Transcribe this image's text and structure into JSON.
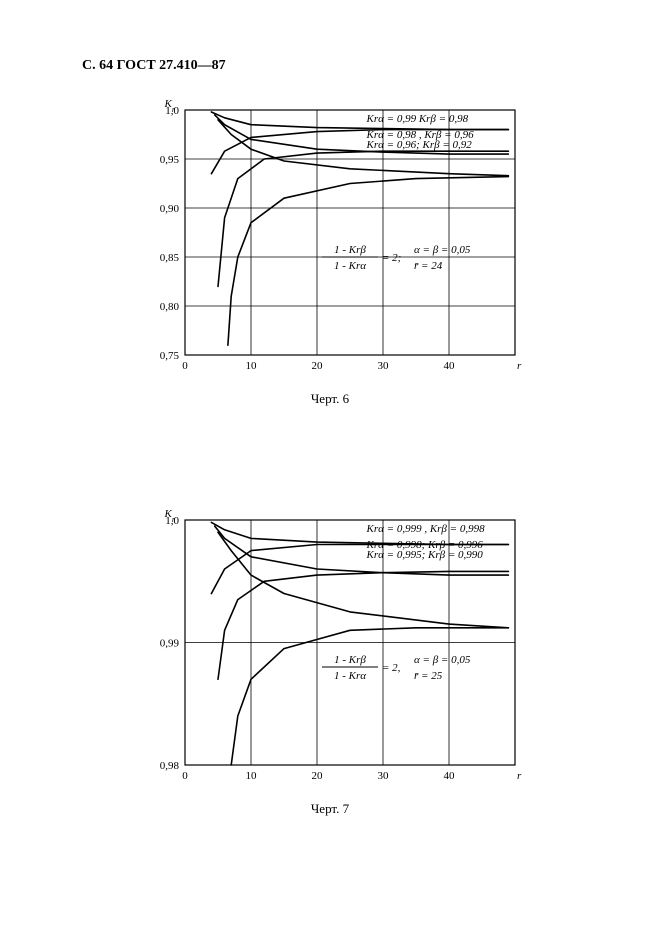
{
  "header": "С. 64 ГОСТ 27.410—87",
  "chart6": {
    "caption": "Черт. 6",
    "y_axis_label": "K",
    "y_axis_sub": "r",
    "x_axis_label": "r",
    "y_ticks": [
      "1,0",
      "0,95",
      "0,90",
      "0,85",
      "0,80",
      "0,75"
    ],
    "x_ticks": [
      "0",
      "10",
      "20",
      "30",
      "40"
    ],
    "curve_labels": [
      "Krα = 0,99    Krβ = 0,98",
      "Krα = 0,98 ,  Krβ = 0,96",
      "Krα = 0,96;  Krβ = 0,92"
    ],
    "formula_lhs": "1 - Krβ",
    "formula_den": "1 - Krα",
    "formula_rhs": "= 2;",
    "formula_right1": "α = β = 0,05",
    "formula_right2": "r̄ = 24",
    "ylim": [
      0.75,
      1.0
    ],
    "xlim": [
      0,
      50
    ],
    "plot": {
      "bg": "#ffffff",
      "stroke": "#000000",
      "linewidth_frame": 1.2,
      "linewidth_grid": 0.8,
      "linewidth_curve": 1.6
    },
    "series": [
      {
        "name": "top-desc-1",
        "pts": [
          [
            4,
            0.998
          ],
          [
            6,
            0.992
          ],
          [
            10,
            0.985
          ],
          [
            20,
            0.982
          ],
          [
            30,
            0.981
          ],
          [
            40,
            0.98
          ],
          [
            49,
            0.98
          ]
        ]
      },
      {
        "name": "top-asc-1",
        "pts": [
          [
            4,
            0.935
          ],
          [
            6,
            0.958
          ],
          [
            10,
            0.972
          ],
          [
            20,
            0.978
          ],
          [
            30,
            0.98
          ],
          [
            40,
            0.98
          ],
          [
            49,
            0.98
          ]
        ]
      },
      {
        "name": "mid-desc-2",
        "pts": [
          [
            4.5,
            0.995
          ],
          [
            6,
            0.985
          ],
          [
            10,
            0.97
          ],
          [
            20,
            0.96
          ],
          [
            30,
            0.957
          ],
          [
            40,
            0.955
          ],
          [
            49,
            0.955
          ]
        ]
      },
      {
        "name": "mid-asc-2",
        "pts": [
          [
            5,
            0.82
          ],
          [
            6,
            0.89
          ],
          [
            8,
            0.93
          ],
          [
            12,
            0.95
          ],
          [
            20,
            0.956
          ],
          [
            30,
            0.958
          ],
          [
            40,
            0.958
          ],
          [
            49,
            0.958
          ]
        ]
      },
      {
        "name": "bot-desc-3",
        "pts": [
          [
            5,
            0.99
          ],
          [
            7,
            0.975
          ],
          [
            10,
            0.96
          ],
          [
            15,
            0.948
          ],
          [
            25,
            0.94
          ],
          [
            40,
            0.935
          ],
          [
            49,
            0.933
          ]
        ]
      },
      {
        "name": "bot-asc-3",
        "pts": [
          [
            6.5,
            0.76
          ],
          [
            7,
            0.81
          ],
          [
            8,
            0.85
          ],
          [
            10,
            0.885
          ],
          [
            15,
            0.91
          ],
          [
            25,
            0.925
          ],
          [
            35,
            0.93
          ],
          [
            49,
            0.932
          ]
        ]
      }
    ]
  },
  "chart7": {
    "caption": "Черт. 7",
    "y_axis_label": "K",
    "y_axis_sub": "r",
    "x_axis_label": "r",
    "y_ticks": [
      "1,0",
      "0,99",
      "0,98"
    ],
    "x_ticks": [
      "0",
      "10",
      "20",
      "30",
      "40"
    ],
    "curve_labels": [
      "Krα = 0,999 ,   Krβ = 0,998",
      "Krα = 0,998;  Krβ = 0,996",
      "Krα = 0,995;  Krβ = 0,990"
    ],
    "formula_lhs": "1 - Krβ",
    "formula_den": "1 - Krα",
    "formula_rhs": "= 2,",
    "formula_right1": "α = β = 0,05",
    "formula_right2": "r̄ = 25",
    "ylim": [
      0.98,
      1.0
    ],
    "xlim": [
      0,
      50
    ],
    "plot": {
      "bg": "#ffffff",
      "stroke": "#000000",
      "linewidth_frame": 1.2,
      "linewidth_grid": 0.8,
      "linewidth_curve": 1.6
    },
    "series": [
      {
        "name": "top-desc-1",
        "pts": [
          [
            4,
            0.9998
          ],
          [
            6,
            0.9992
          ],
          [
            10,
            0.9985
          ],
          [
            20,
            0.9982
          ],
          [
            30,
            0.9981
          ],
          [
            40,
            0.998
          ],
          [
            49,
            0.998
          ]
        ]
      },
      {
        "name": "top-asc-1",
        "pts": [
          [
            4,
            0.994
          ],
          [
            6,
            0.996
          ],
          [
            10,
            0.9975
          ],
          [
            20,
            0.998
          ],
          [
            30,
            0.998
          ],
          [
            40,
            0.998
          ],
          [
            49,
            0.998
          ]
        ]
      },
      {
        "name": "mid-desc-2",
        "pts": [
          [
            4.5,
            0.9995
          ],
          [
            6,
            0.9985
          ],
          [
            10,
            0.997
          ],
          [
            20,
            0.996
          ],
          [
            30,
            0.9957
          ],
          [
            40,
            0.9955
          ],
          [
            49,
            0.9955
          ]
        ]
      },
      {
        "name": "mid-asc-2",
        "pts": [
          [
            5,
            0.987
          ],
          [
            6,
            0.991
          ],
          [
            8,
            0.9935
          ],
          [
            12,
            0.995
          ],
          [
            20,
            0.9955
          ],
          [
            30,
            0.9957
          ],
          [
            40,
            0.9958
          ],
          [
            49,
            0.9958
          ]
        ]
      },
      {
        "name": "bot-desc-3",
        "pts": [
          [
            5,
            0.999
          ],
          [
            7,
            0.9975
          ],
          [
            10,
            0.9955
          ],
          [
            15,
            0.994
          ],
          [
            25,
            0.9925
          ],
          [
            40,
            0.9915
          ],
          [
            49,
            0.9912
          ]
        ]
      },
      {
        "name": "bot-asc-3",
        "pts": [
          [
            7,
            0.98
          ],
          [
            8,
            0.984
          ],
          [
            10,
            0.987
          ],
          [
            15,
            0.9895
          ],
          [
            25,
            0.991
          ],
          [
            35,
            0.9912
          ],
          [
            49,
            0.9912
          ]
        ]
      }
    ]
  }
}
